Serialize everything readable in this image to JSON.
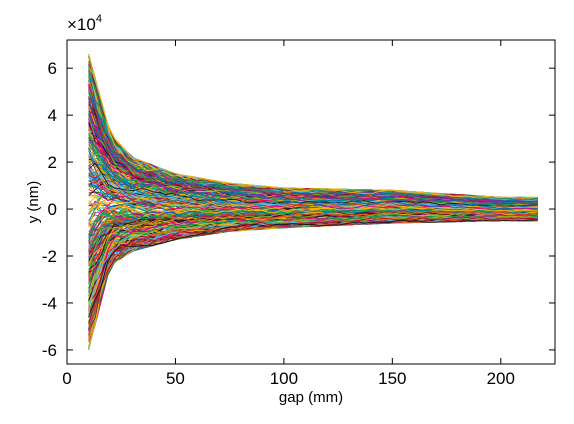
{
  "chart_data": {
    "type": "line",
    "xlabel": "gap (mm)",
    "ylabel": "y (nm)",
    "y_multiplier": {
      "base": "×10",
      "exponent": "4"
    },
    "xlim": [
      0,
      225
    ],
    "ylim": [
      -66000,
      72000
    ],
    "x_ticks": [
      0,
      50,
      100,
      150,
      200
    ],
    "x_tick_labels": [
      "0",
      "50",
      "100",
      "150",
      "200"
    ],
    "y_ticks": [
      -60000,
      -40000,
      -20000,
      0,
      20000,
      40000,
      60000
    ],
    "y_tick_labels": [
      "-6",
      "-4",
      "-2",
      "0",
      "2",
      "4",
      "6"
    ],
    "grid": false,
    "legend": "none",
    "x_start": 10,
    "x_end": 217,
    "series_count": 400,
    "envelope": {
      "x": [
        10,
        20,
        30,
        50,
        75,
        100,
        150,
        200,
        217
      ],
      "upper": [
        66000,
        32000,
        22000,
        15000,
        11000,
        9000,
        8000,
        5000,
        5000
      ],
      "lower": [
        -60000,
        -24000,
        -18000,
        -13000,
        -9500,
        -8000,
        -6000,
        -5000,
        -5000
      ]
    },
    "colors": [
      "#0072BD",
      "#D95319",
      "#EDB120",
      "#7E2F8E",
      "#77AC30",
      "#4DBEEE",
      "#A2142F",
      "#E6007E",
      "#00A651",
      "#1A1A1A",
      "#F7B500",
      "#2E8B57"
    ]
  }
}
